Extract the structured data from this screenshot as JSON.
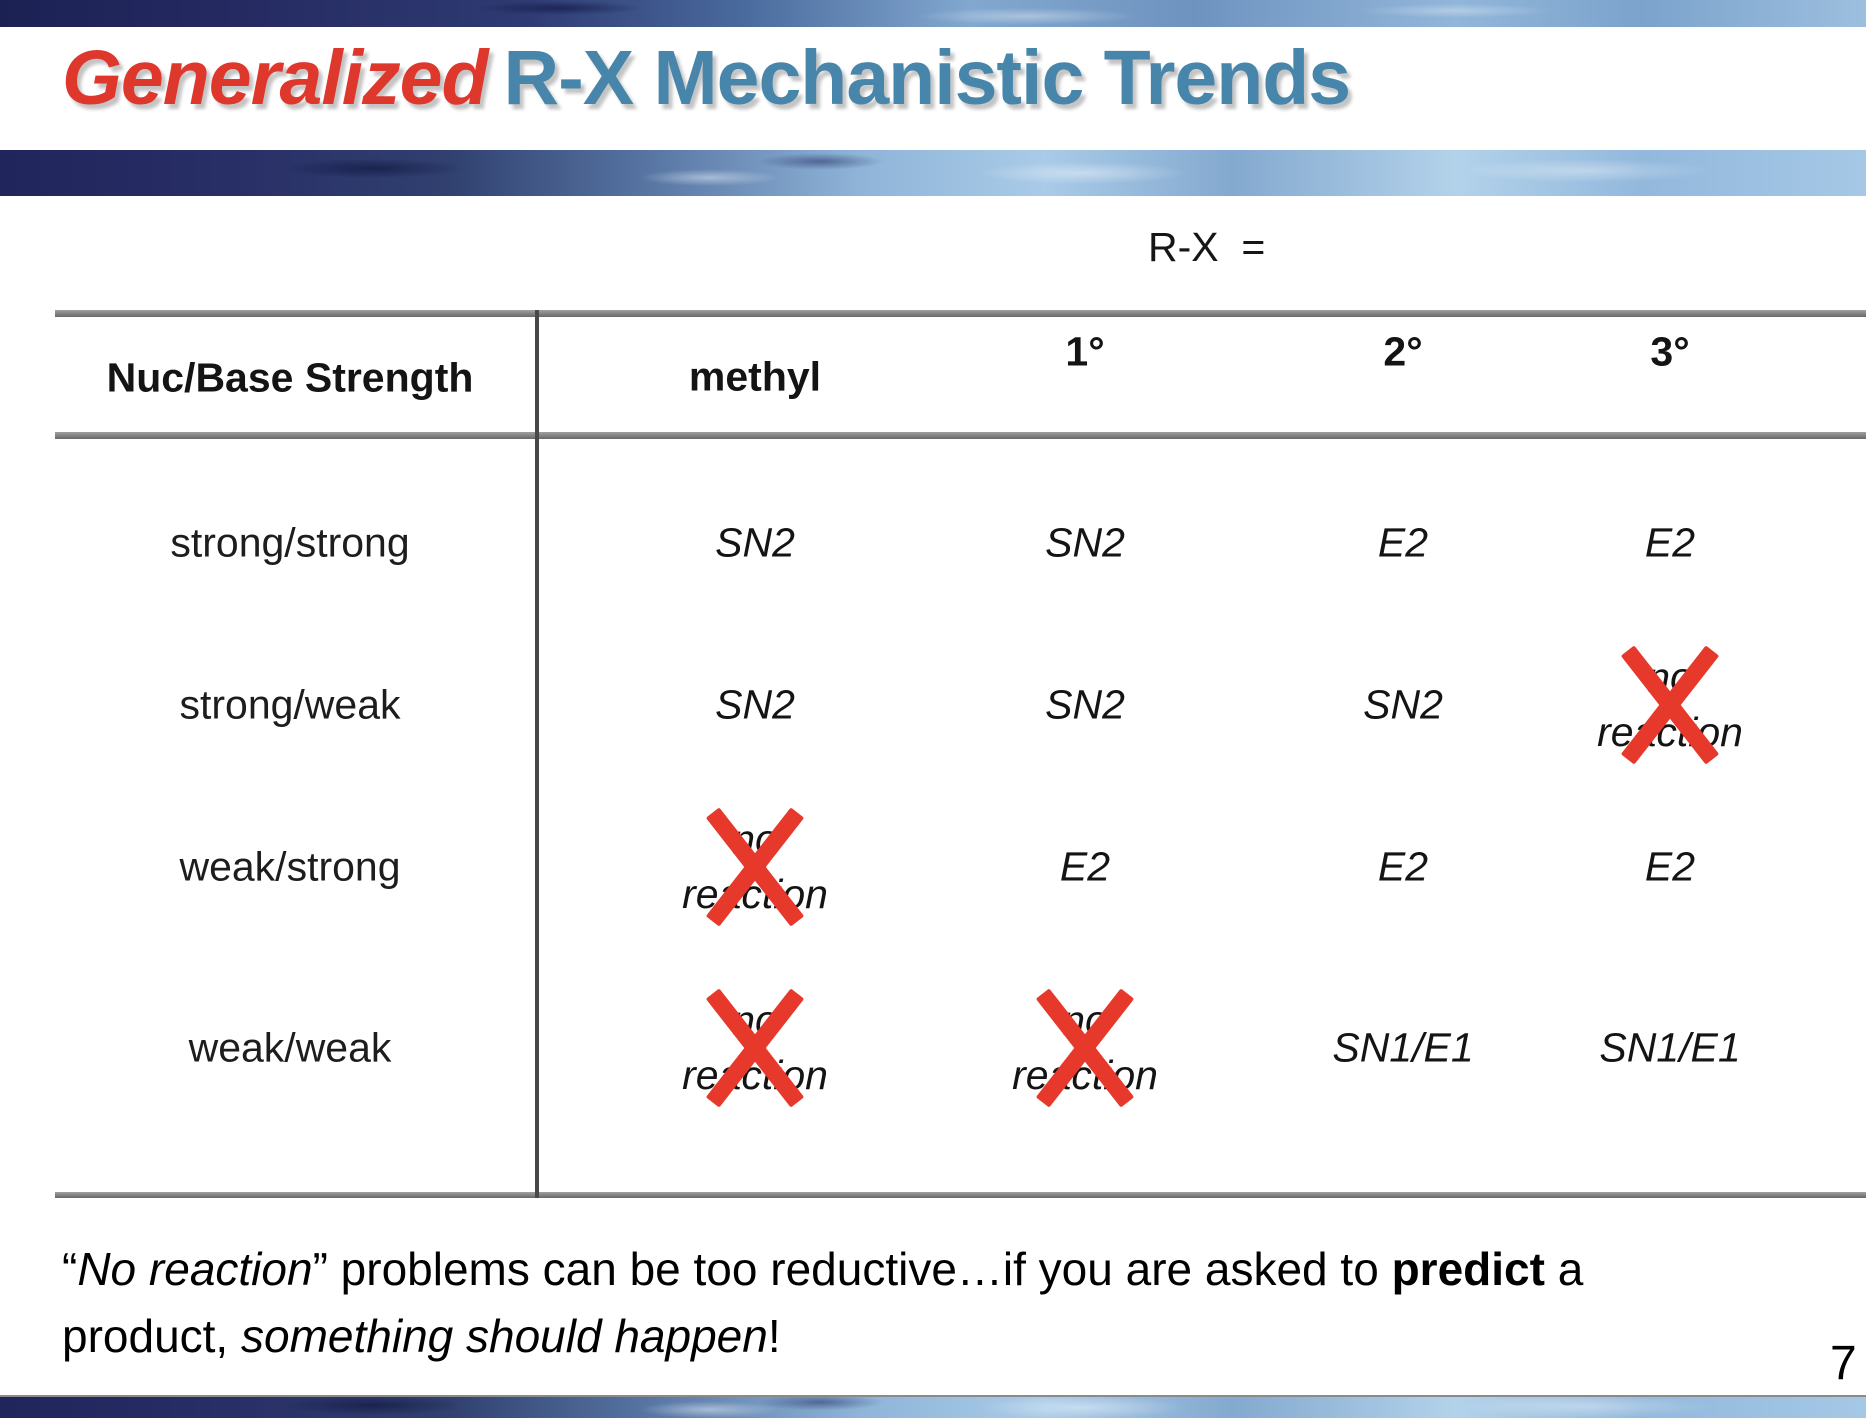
{
  "slide": {
    "title": {
      "highlight": "Generalized",
      "rest": "R-X Mechanistic Trends"
    },
    "rx_label": "R-X  =",
    "page_number": "7"
  },
  "table": {
    "header": {
      "row_header": "Nuc/Base Strength",
      "columns": [
        "methyl",
        "1°",
        "2°",
        "3°"
      ]
    },
    "rows": [
      {
        "label": "strong/strong",
        "cells": [
          {
            "text": "SN2"
          },
          {
            "text": "SN2"
          },
          {
            "text": "E2"
          },
          {
            "text": "E2"
          }
        ]
      },
      {
        "label": "strong/weak",
        "cells": [
          {
            "text": "SN2"
          },
          {
            "text": "SN2"
          },
          {
            "text": "SN2"
          },
          {
            "text": "no reaction",
            "no_reaction": true
          }
        ]
      },
      {
        "label": "weak/strong",
        "cells": [
          {
            "text": "no reaction",
            "no_reaction": true
          },
          {
            "text": "E2"
          },
          {
            "text": "E2"
          },
          {
            "text": "E2"
          }
        ]
      },
      {
        "label": "weak/weak",
        "cells": [
          {
            "text": "no reaction",
            "no_reaction": true
          },
          {
            "text": "no reaction",
            "no_reaction": true
          },
          {
            "text": "SN1/E1"
          },
          {
            "text": "SN1/E1"
          }
        ]
      }
    ]
  },
  "footnote": {
    "segments": [
      {
        "style": "normal",
        "text": "“"
      },
      {
        "style": "italic",
        "text": "No reaction"
      },
      {
        "style": "normal",
        "text": "” problems can be too reductive…if you are asked to "
      },
      {
        "style": "bold",
        "text": "predict"
      },
      {
        "style": "normal",
        "text": " a"
      },
      {
        "style": "break",
        "text": ""
      },
      {
        "style": "normal",
        "text": "product, "
      },
      {
        "style": "italic",
        "text": "something should happen"
      },
      {
        "style": "normal",
        "text": "!"
      }
    ]
  },
  "colors": {
    "title_red": "#de372c",
    "title_blue": "#4785aa",
    "cross_red": "#e6392b",
    "border_gray": "#7f7f7f"
  }
}
